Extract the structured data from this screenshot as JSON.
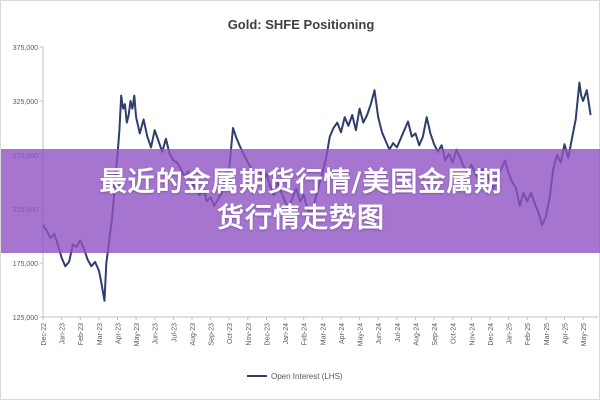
{
  "overlay": {
    "line1": "最近的金属期货行情/美国金属期",
    "line2": "货行情走势图"
  },
  "colors": {
    "series": "#2e3f6b",
    "axis": "#bfbfbf",
    "text": "#595959",
    "banner": "#8e52c4"
  },
  "chart_data": {
    "type": "line",
    "title": "Gold: SHFE Positioning",
    "xlabel": "",
    "ylabel": "",
    "ylim": [
      125000,
      375000
    ],
    "yticks": [
      125000,
      175000,
      225000,
      275000,
      325000,
      375000
    ],
    "ytick_labels": [
      "125,000",
      "175,000",
      "225,000",
      "275,000",
      "325,000",
      "375,000"
    ],
    "xtick_labels": [
      "Dec-22",
      "Jan-23",
      "Feb-23",
      "Mar-23",
      "Apr-23",
      "May-23",
      "Jun-23",
      "Jul-23",
      "Aug-23",
      "Sep-23",
      "Oct-23",
      "Nov-23",
      "Dec-23",
      "Jan-24",
      "Feb-24",
      "Mar-24",
      "Apr-24",
      "May-24",
      "Jun-24",
      "Jul-24",
      "Aug-24",
      "Sep-24",
      "Oct-24",
      "Nov-24",
      "Dec-24",
      "Jan-25",
      "Feb-25",
      "Mar-25",
      "Apr-25",
      "May-25"
    ],
    "grid": false,
    "legend_position": "bottom",
    "series": [
      {
        "name": "Open Interest (LHS)",
        "values": [
          [
            0.0,
            210000
          ],
          [
            0.2,
            205000
          ],
          [
            0.4,
            198000
          ],
          [
            0.6,
            202000
          ],
          [
            0.8,
            192000
          ],
          [
            1.0,
            180000
          ],
          [
            1.2,
            172000
          ],
          [
            1.4,
            176000
          ],
          [
            1.6,
            192000
          ],
          [
            1.8,
            190000
          ],
          [
            2.0,
            196000
          ],
          [
            2.2,
            188000
          ],
          [
            2.4,
            178000
          ],
          [
            2.6,
            172000
          ],
          [
            2.8,
            176000
          ],
          [
            3.0,
            168000
          ],
          [
            3.1,
            160000
          ],
          [
            3.2,
            150000
          ],
          [
            3.3,
            140000
          ],
          [
            3.4,
            175000
          ],
          [
            3.5,
            188000
          ],
          [
            3.6,
            202000
          ],
          [
            3.7,
            215000
          ],
          [
            3.8,
            235000
          ],
          [
            3.9,
            258000
          ],
          [
            4.0,
            275000
          ],
          [
            4.1,
            298000
          ],
          [
            4.2,
            330000
          ],
          [
            4.3,
            318000
          ],
          [
            4.4,
            322000
          ],
          [
            4.5,
            305000
          ],
          [
            4.6,
            312000
          ],
          [
            4.7,
            325000
          ],
          [
            4.8,
            318000
          ],
          [
            4.9,
            330000
          ],
          [
            5.0,
            310000
          ],
          [
            5.2,
            295000
          ],
          [
            5.4,
            308000
          ],
          [
            5.6,
            292000
          ],
          [
            5.8,
            282000
          ],
          [
            6.0,
            298000
          ],
          [
            6.2,
            288000
          ],
          [
            6.4,
            278000
          ],
          [
            6.6,
            290000
          ],
          [
            6.8,
            276000
          ],
          [
            7.0,
            270000
          ],
          [
            7.2,
            268000
          ],
          [
            7.4,
            262000
          ],
          [
            7.6,
            255000
          ],
          [
            7.8,
            260000
          ],
          [
            8.0,
            248000
          ],
          [
            8.2,
            245000
          ],
          [
            8.4,
            238000
          ],
          [
            8.6,
            244000
          ],
          [
            8.8,
            232000
          ],
          [
            9.0,
            236000
          ],
          [
            9.2,
            228000
          ],
          [
            9.4,
            234000
          ],
          [
            9.6,
            240000
          ],
          [
            9.8,
            255000
          ],
          [
            10.0,
            262000
          ],
          [
            10.2,
            300000
          ],
          [
            10.4,
            290000
          ],
          [
            10.6,
            282000
          ],
          [
            10.8,
            275000
          ],
          [
            11.0,
            268000
          ],
          [
            11.2,
            262000
          ],
          [
            11.4,
            256000
          ],
          [
            11.6,
            262000
          ],
          [
            11.8,
            250000
          ],
          [
            12.0,
            258000
          ],
          [
            12.2,
            246000
          ],
          [
            12.4,
            238000
          ],
          [
            12.6,
            250000
          ],
          [
            12.8,
            240000
          ],
          [
            13.0,
            232000
          ],
          [
            13.2,
            225000
          ],
          [
            13.4,
            236000
          ],
          [
            13.6,
            244000
          ],
          [
            13.8,
            232000
          ],
          [
            14.0,
            238000
          ],
          [
            14.2,
            225000
          ],
          [
            14.4,
            220000
          ],
          [
            14.6,
            232000
          ],
          [
            14.8,
            246000
          ],
          [
            15.0,
            258000
          ],
          [
            15.2,
            272000
          ],
          [
            15.4,
            292000
          ],
          [
            15.6,
            300000
          ],
          [
            15.8,
            305000
          ],
          [
            16.0,
            296000
          ],
          [
            16.2,
            310000
          ],
          [
            16.4,
            302000
          ],
          [
            16.6,
            312000
          ],
          [
            16.8,
            298000
          ],
          [
            17.0,
            318000
          ],
          [
            17.2,
            305000
          ],
          [
            17.4,
            312000
          ],
          [
            17.6,
            322000
          ],
          [
            17.8,
            335000
          ],
          [
            18.0,
            310000
          ],
          [
            18.2,
            296000
          ],
          [
            18.4,
            288000
          ],
          [
            18.6,
            280000
          ],
          [
            18.8,
            286000
          ],
          [
            19.0,
            282000
          ],
          [
            19.2,
            290000
          ],
          [
            19.4,
            298000
          ],
          [
            19.6,
            306000
          ],
          [
            19.8,
            292000
          ],
          [
            20.0,
            295000
          ],
          [
            20.2,
            284000
          ],
          [
            20.4,
            292000
          ],
          [
            20.6,
            310000
          ],
          [
            20.8,
            295000
          ],
          [
            21.0,
            285000
          ],
          [
            21.2,
            278000
          ],
          [
            21.4,
            284000
          ],
          [
            21.6,
            270000
          ],
          [
            21.8,
            276000
          ],
          [
            22.0,
            268000
          ],
          [
            22.2,
            280000
          ],
          [
            22.4,
            272000
          ],
          [
            22.6,
            264000
          ],
          [
            22.8,
            258000
          ],
          [
            23.0,
            266000
          ],
          [
            23.2,
            258000
          ],
          [
            23.4,
            252000
          ],
          [
            23.6,
            262000
          ],
          [
            23.8,
            258000
          ],
          [
            24.0,
            250000
          ],
          [
            24.2,
            244000
          ],
          [
            24.4,
            256000
          ],
          [
            24.6,
            262000
          ],
          [
            24.8,
            270000
          ],
          [
            25.0,
            258000
          ],
          [
            25.2,
            250000
          ],
          [
            25.4,
            244000
          ],
          [
            25.6,
            228000
          ],
          [
            25.8,
            240000
          ],
          [
            26.0,
            232000
          ],
          [
            26.2,
            240000
          ],
          [
            26.4,
            230000
          ],
          [
            26.6,
            222000
          ],
          [
            26.8,
            210000
          ],
          [
            27.0,
            218000
          ],
          [
            27.2,
            235000
          ],
          [
            27.4,
            262000
          ],
          [
            27.6,
            275000
          ],
          [
            27.8,
            268000
          ],
          [
            28.0,
            285000
          ],
          [
            28.2,
            272000
          ],
          [
            28.4,
            290000
          ],
          [
            28.6,
            308000
          ],
          [
            28.8,
            342000
          ],
          [
            28.9,
            330000
          ],
          [
            29.0,
            325000
          ],
          [
            29.2,
            335000
          ],
          [
            29.4,
            312000
          ]
        ]
      }
    ]
  }
}
